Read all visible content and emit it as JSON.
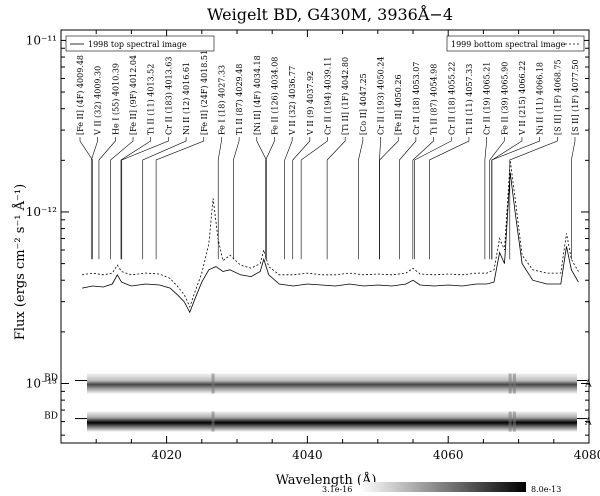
{
  "chart_data": {
    "type": "line",
    "title": "Weigelt BD, G430M, 3936Å−4",
    "xlabel": "Wavelength (Å)",
    "ylabel": "Flux (ergs cm⁻² s⁻¹ Å⁻¹)",
    "xlim": [
      4005,
      4080
    ],
    "ylim": [
      4.5e-14,
      1.15e-11
    ],
    "yscale": "log",
    "x_ticks": [
      4020,
      4040,
      4060,
      4080
    ],
    "y_ticks": [
      {
        "value": 1e-11,
        "label": "10⁻¹¹"
      },
      {
        "value": 1e-12,
        "label": "10⁻¹²"
      },
      {
        "value": 1e-13,
        "label": "10⁻¹³"
      }
    ],
    "legend": [
      {
        "name": "1998 top spectral image",
        "style": "solid",
        "placement": "top-left"
      },
      {
        "name": "1999 bottom spectral image",
        "style": "dotted",
        "placement": "top-right"
      }
    ],
    "series": [
      {
        "name": "1998 top spectral image",
        "style": "solid",
        "points": [
          [
            4008.0,
            3.6e-13
          ],
          [
            4009.5,
            3.7e-13
          ],
          [
            4011.0,
            3.65e-13
          ],
          [
            4012.3,
            3.8e-13
          ],
          [
            4013.0,
            4.3e-13
          ],
          [
            4013.6,
            3.9e-13
          ],
          [
            4015.0,
            3.7e-13
          ],
          [
            4017.0,
            3.8e-13
          ],
          [
            4019.0,
            3.75e-13
          ],
          [
            4020.5,
            3.6e-13
          ],
          [
            4021.5,
            3.3e-13
          ],
          [
            4022.5,
            3e-13
          ],
          [
            4023.3,
            2.6e-13
          ],
          [
            4024.0,
            3.1e-13
          ],
          [
            4025.0,
            3.9e-13
          ],
          [
            4026.0,
            4.6e-13
          ],
          [
            4027.0,
            4.8e-13
          ],
          [
            4028.0,
            4.5e-13
          ],
          [
            4029.0,
            4.6e-13
          ],
          [
            4030.5,
            4.3e-13
          ],
          [
            4032.0,
            4.2e-13
          ],
          [
            4033.3,
            4.5e-13
          ],
          [
            4033.8,
            5.3e-13
          ],
          [
            4034.5,
            4.3e-13
          ],
          [
            4036.0,
            3.8e-13
          ],
          [
            4038.0,
            3.7e-13
          ],
          [
            4040.0,
            3.8e-13
          ],
          [
            4042.0,
            3.75e-13
          ],
          [
            4044.0,
            3.7e-13
          ],
          [
            4046.0,
            3.8e-13
          ],
          [
            4048.0,
            3.7e-13
          ],
          [
            4050.0,
            3.75e-13
          ],
          [
            4052.0,
            3.7e-13
          ],
          [
            4054.0,
            3.8e-13
          ],
          [
            4055.0,
            4e-13
          ],
          [
            4056.0,
            3.75e-13
          ],
          [
            4058.0,
            3.7e-13
          ],
          [
            4060.0,
            3.75e-13
          ],
          [
            4062.0,
            3.7e-13
          ],
          [
            4064.0,
            3.8e-13
          ],
          [
            4065.5,
            3.8e-13
          ],
          [
            4066.5,
            3.9e-13
          ],
          [
            4067.3,
            5.8e-13
          ],
          [
            4068.0,
            5e-13
          ],
          [
            4068.8,
            1.7e-12
          ],
          [
            4069.5,
            1e-12
          ],
          [
            4070.5,
            5e-13
          ],
          [
            4072.0,
            4e-13
          ],
          [
            4074.0,
            3.8e-13
          ],
          [
            4076.0,
            3.8e-13
          ],
          [
            4076.8,
            6.3e-13
          ],
          [
            4077.5,
            4.6e-13
          ],
          [
            4078.5,
            3.9e-13
          ]
        ]
      },
      {
        "name": "1999 bottom spectral image",
        "style": "dotted",
        "points": [
          [
            4008.0,
            4.3e-13
          ],
          [
            4009.5,
            4.4e-13
          ],
          [
            4011.0,
            4.3e-13
          ],
          [
            4012.3,
            4.4e-13
          ],
          [
            4013.0,
            4.9e-13
          ],
          [
            4013.6,
            4.5e-13
          ],
          [
            4015.0,
            4.3e-13
          ],
          [
            4017.0,
            4.4e-13
          ],
          [
            4019.0,
            4.35e-13
          ],
          [
            4020.5,
            4.1e-13
          ],
          [
            4021.5,
            3.7e-13
          ],
          [
            4022.5,
            3.3e-13
          ],
          [
            4023.3,
            2.8e-13
          ],
          [
            4024.0,
            3.4e-13
          ],
          [
            4025.0,
            4.4e-13
          ],
          [
            4026.0,
            6.5e-13
          ],
          [
            4026.6,
            1.2e-12
          ],
          [
            4027.3,
            7e-13
          ],
          [
            4028.0,
            5.2e-13
          ],
          [
            4029.0,
            5.6e-13
          ],
          [
            4030.5,
            4.9e-13
          ],
          [
            4032.0,
            4.7e-13
          ],
          [
            4033.3,
            5e-13
          ],
          [
            4033.8,
            6e-13
          ],
          [
            4034.5,
            4.8e-13
          ],
          [
            4036.0,
            4.3e-13
          ],
          [
            4038.0,
            4.3e-13
          ],
          [
            4040.0,
            4.4e-13
          ],
          [
            4042.0,
            4.3e-13
          ],
          [
            4044.0,
            4.3e-13
          ],
          [
            4046.0,
            4.4e-13
          ],
          [
            4048.0,
            4.3e-13
          ],
          [
            4050.0,
            4.35e-13
          ],
          [
            4052.0,
            4.3e-13
          ],
          [
            4054.0,
            4.4e-13
          ],
          [
            4055.0,
            4.7e-13
          ],
          [
            4056.0,
            4.35e-13
          ],
          [
            4058.0,
            4.3e-13
          ],
          [
            4060.0,
            4.35e-13
          ],
          [
            4062.0,
            4.3e-13
          ],
          [
            4064.0,
            4.4e-13
          ],
          [
            4065.5,
            4.4e-13
          ],
          [
            4066.5,
            4.6e-13
          ],
          [
            4067.3,
            7e-13
          ],
          [
            4068.0,
            6e-13
          ],
          [
            4068.8,
            2e-12
          ],
          [
            4069.5,
            1.2e-12
          ],
          [
            4070.5,
            5.6e-13
          ],
          [
            4072.0,
            4.6e-13
          ],
          [
            4074.0,
            4.4e-13
          ],
          [
            4076.0,
            4.4e-13
          ],
          [
            4076.8,
            7.5e-13
          ],
          [
            4077.5,
            5.3e-13
          ],
          [
            4078.5,
            4.5e-13
          ]
        ]
      }
    ],
    "annotations": [
      {
        "text": "[Fe II] (4F) 4009.48",
        "x": 4009.48
      },
      {
        "text": "V II (32) 4009.30",
        "x": 4009.3
      },
      {
        "text": "He I (55) 4010.39",
        "x": 4010.39
      },
      {
        "text": "[Fe II] (9F) 4012.04",
        "x": 4012.04
      },
      {
        "text": "Ti II (11) 4013.52",
        "x": 4013.52
      },
      {
        "text": "Cr II (183) 4013.63",
        "x": 4013.63
      },
      {
        "text": "Ni II (12) 4016.61",
        "x": 4016.61
      },
      {
        "text": "[Fe II] (24F) 4018.51",
        "x": 4018.51
      },
      {
        "text": "Fe I (18) 4027.33",
        "x": 4027.33
      },
      {
        "text": "Ti II (87) 4029.48",
        "x": 4029.48
      },
      {
        "text": "[Ni II] (4F) 4034.18",
        "x": 4034.18
      },
      {
        "text": "Fe II (126) 4034.08",
        "x": 4034.08
      },
      {
        "text": "V II (32) 4036.77",
        "x": 4036.77
      },
      {
        "text": "V II (9) 4037.92",
        "x": 4037.92
      },
      {
        "text": "Cr II (194) 4039.11",
        "x": 4039.11
      },
      {
        "text": "[Ti II] (1F) 4042.80",
        "x": 4042.8
      },
      {
        "text": "[Co II] 4047.25",
        "x": 4047.25
      },
      {
        "text": "Cr II (193) 4050.24",
        "x": 4050.24
      },
      {
        "text": "[Fe II] 4050.26",
        "x": 4050.26
      },
      {
        "text": "Cr II (18) 4053.07",
        "x": 4053.07
      },
      {
        "text": "Ti II (87) 4054.98",
        "x": 4054.98
      },
      {
        "text": "Cr II (18) 4055.22",
        "x": 4055.22
      },
      {
        "text": "Ti II (11) 4057.33",
        "x": 4057.33
      },
      {
        "text": "Cr II (19) 4065.21",
        "x": 4065.21
      },
      {
        "text": "Fe II (39) 4065.90",
        "x": 4065.9
      },
      {
        "text": "V II (215) 4066.22",
        "x": 4066.22
      },
      {
        "text": "Ni II (11) 4066.18",
        "x": 4066.18
      },
      {
        "text": "[S II] (1F) 4068.75",
        "x": 4068.75
      },
      {
        "text": "[S II] (1F) 4077.50",
        "x": 4077.5
      }
    ],
    "strips": [
      {
        "left_label": "BD",
        "right_label": "A",
        "level": 1e-13
      },
      {
        "left_label": "BD",
        "right_label": "A",
        "level": 6e-14
      }
    ],
    "colorbar": {
      "min_label": "3.1e-16",
      "max_label": "8.0e-13"
    }
  }
}
